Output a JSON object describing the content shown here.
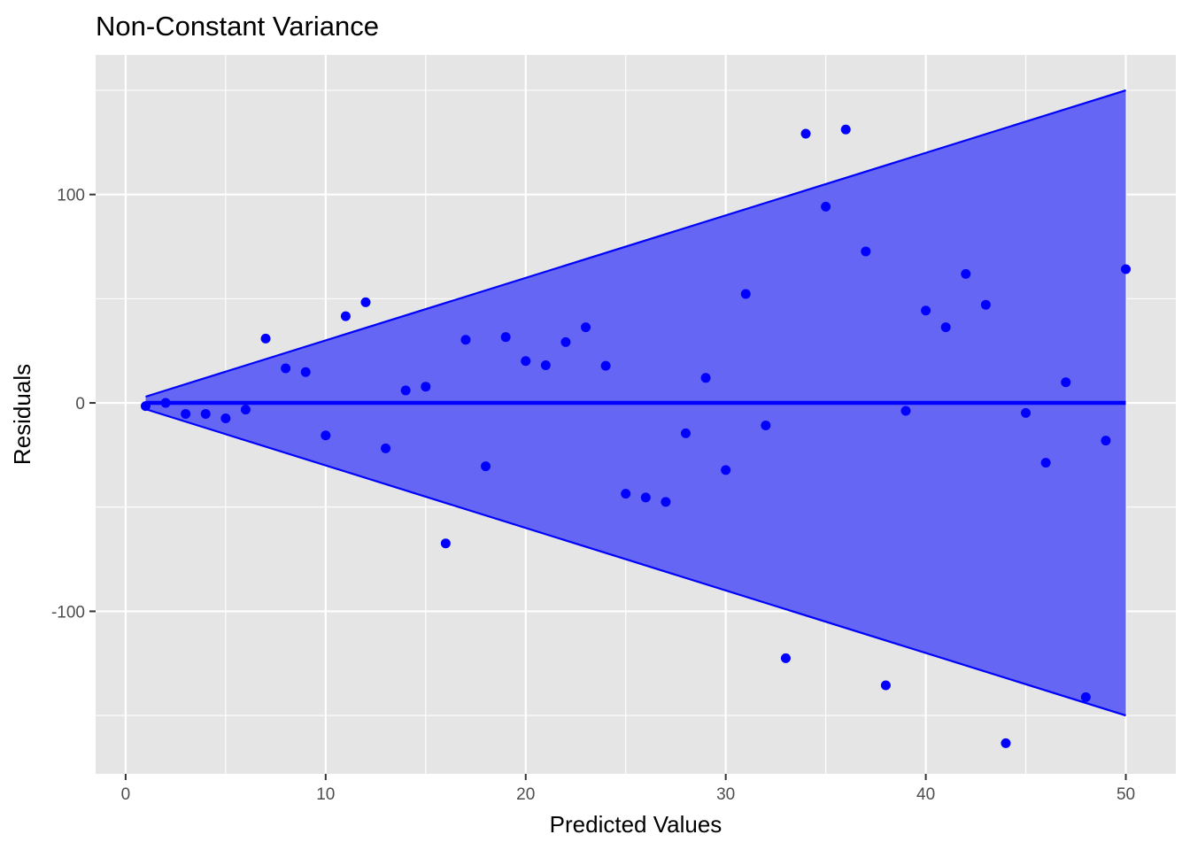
{
  "chart_data": {
    "type": "scatter",
    "title": "Non-Constant Variance",
    "xlabel": "Predicted Values",
    "ylabel": "Residuals",
    "xlim": [
      -1.5,
      52.5
    ],
    "ylim": [
      -178,
      167
    ],
    "x_ticks": [
      0,
      10,
      20,
      30,
      40,
      50
    ],
    "y_ticks": [
      -100,
      0,
      100
    ],
    "x_tick_labels": [
      "0",
      "10",
      "20",
      "30",
      "40",
      "50"
    ],
    "y_tick_labels": [
      "-100",
      "0",
      "100"
    ],
    "grid": true,
    "colors": {
      "panel": "#e5e5e5",
      "grid": "#ffffff",
      "points": "#0000ff",
      "band_fill": "#6666f5",
      "band_line": "#0000ff"
    },
    "band": {
      "x": [
        1,
        50
      ],
      "upper": [
        3,
        150
      ],
      "lower": [
        -3,
        -150
      ]
    },
    "reference_line_y": 0,
    "points": {
      "x": [
        1,
        2,
        3,
        4,
        5,
        6,
        7,
        8,
        9,
        10,
        11,
        12,
        13,
        14,
        15,
        16,
        17,
        18,
        19,
        20,
        21,
        22,
        23,
        24,
        25,
        26,
        27,
        28,
        29,
        30,
        31,
        32,
        33,
        34,
        35,
        36,
        37,
        38,
        39,
        40,
        41,
        42,
        43,
        44,
        45,
        46,
        47,
        48,
        49,
        50
      ],
      "y": [
        -1.5,
        0,
        -5.3,
        -5.3,
        -7.4,
        -3.2,
        30.9,
        16.6,
        14.8,
        -15.6,
        41.6,
        48.3,
        -21.8,
        6,
        7.8,
        -67.4,
        30.3,
        -30.4,
        31.6,
        20.1,
        18.1,
        29.2,
        36.3,
        17.8,
        -43.6,
        -45.4,
        -47.5,
        -14.6,
        12,
        -32.2,
        52.3,
        -10.8,
        -122.5,
        129.2,
        94.2,
        131.2,
        72.7,
        -135.5,
        -3.8,
        44.3,
        36.3,
        61.9,
        47.1,
        -163.3,
        -4.8,
        -28.7,
        9.9,
        -141.2,
        -18.1,
        64.2
      ]
    }
  }
}
